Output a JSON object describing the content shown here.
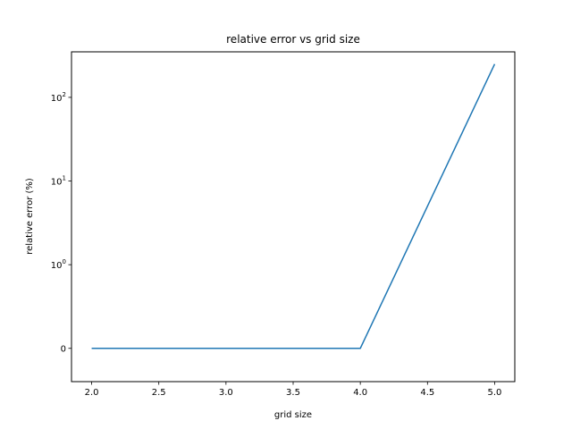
{
  "chart_data": {
    "type": "line",
    "title": "relative error vs grid size",
    "xlabel": "grid size",
    "ylabel": "relative error (%)",
    "x_ticks": [
      "2.0",
      "2.5",
      "3.0",
      "3.5",
      "4.0",
      "4.5",
      "5.0"
    ],
    "y_ticks": [
      {
        "value": 0,
        "base": "0",
        "exp": ""
      },
      {
        "value": 1,
        "base": "10",
        "exp": "0"
      },
      {
        "value": 10,
        "base": "10",
        "exp": "1"
      },
      {
        "value": 100,
        "base": "10",
        "exp": "2"
      }
    ],
    "y_scale": "symlog",
    "x_range": [
      1.85,
      5.15
    ],
    "y_range": [
      -0.25,
      350
    ],
    "grid": false,
    "series": [
      {
        "color": "#1f77b4",
        "x": [
          2,
          3,
          4,
          5
        ],
        "y": [
          0,
          0,
          0,
          250
        ]
      }
    ]
  }
}
